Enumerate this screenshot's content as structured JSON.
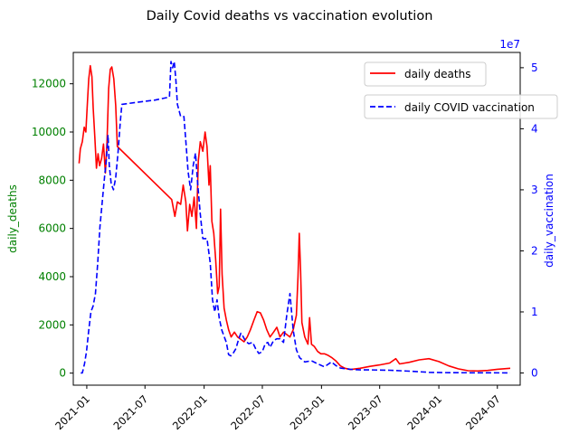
{
  "chart_data": {
    "type": "line",
    "title": "Daily Covid deaths vs vaccination evolution",
    "xlabel": "",
    "xlim": [
      "2020-11-20",
      "2024-09-10"
    ],
    "x_ticks": [
      "2021-01",
      "2021-07",
      "2022-01",
      "2022-07",
      "2023-01",
      "2023-07",
      "2024-01",
      "2024-07"
    ],
    "left_axis": {
      "label": "daily_deaths",
      "color": "#008000",
      "ylim": [
        -500,
        13300
      ],
      "ticks": [
        0,
        2000,
        4000,
        6000,
        8000,
        10000,
        12000
      ]
    },
    "right_axis": {
      "label": "daily_vaccination",
      "color": "#0000ff",
      "ylim": [
        -2000000,
        52500000
      ],
      "ticks": [
        0,
        1,
        2,
        3,
        4,
        5
      ],
      "multiplier": "1e7"
    },
    "grid": false,
    "legend_placement": "top-right",
    "series": [
      {
        "name": "daily deaths",
        "axis": "left",
        "color": "#ff0000",
        "style": "solid",
        "points": [
          [
            "2020-12-08",
            8700
          ],
          [
            "2020-12-12",
            9300
          ],
          [
            "2020-12-18",
            9600
          ],
          [
            "2020-12-24",
            10200
          ],
          [
            "2020-12-29",
            10000
          ],
          [
            "2021-01-03",
            11200
          ],
          [
            "2021-01-07",
            12200
          ],
          [
            "2021-01-12",
            12750
          ],
          [
            "2021-01-17",
            12300
          ],
          [
            "2021-01-21",
            11000
          ],
          [
            "2021-01-26",
            9800
          ],
          [
            "2021-01-31",
            8500
          ],
          [
            "2021-02-05",
            9100
          ],
          [
            "2021-02-10",
            8600
          ],
          [
            "2021-02-16",
            8900
          ],
          [
            "2021-02-22",
            9500
          ],
          [
            "2021-02-28",
            8300
          ],
          [
            "2021-03-05",
            9600
          ],
          [
            "2021-03-10",
            11800
          ],
          [
            "2021-03-15",
            12600
          ],
          [
            "2021-03-20",
            12700
          ],
          [
            "2021-03-26",
            12200
          ],
          [
            "2021-04-01",
            11100
          ],
          [
            "2021-04-06",
            9400
          ],
          [
            "2021-09-22",
            7200
          ],
          [
            "2021-10-02",
            6500
          ],
          [
            "2021-10-10",
            7100
          ],
          [
            "2021-10-20",
            7000
          ],
          [
            "2021-10-28",
            7800
          ],
          [
            "2021-11-05",
            7100
          ],
          [
            "2021-11-10",
            5900
          ],
          [
            "2021-11-17",
            7000
          ],
          [
            "2021-11-24",
            6500
          ],
          [
            "2021-12-01",
            7300
          ],
          [
            "2021-12-08",
            6000
          ],
          [
            "2021-12-14",
            8800
          ],
          [
            "2021-12-20",
            9600
          ],
          [
            "2021-12-28",
            9200
          ],
          [
            "2022-01-04",
            10000
          ],
          [
            "2022-01-10",
            9400
          ],
          [
            "2022-01-16",
            7800
          ],
          [
            "2022-01-20",
            8600
          ],
          [
            "2022-01-25",
            6300
          ],
          [
            "2022-01-31",
            5800
          ],
          [
            "2022-02-06",
            4700
          ],
          [
            "2022-02-12",
            3300
          ],
          [
            "2022-02-17",
            3600
          ],
          [
            "2022-02-21",
            6800
          ],
          [
            "2022-02-26",
            4100
          ],
          [
            "2022-03-04",
            2700
          ],
          [
            "2022-03-11",
            2200
          ],
          [
            "2022-03-18",
            1800
          ],
          [
            "2022-03-26",
            1500
          ],
          [
            "2022-04-05",
            1700
          ],
          [
            "2022-04-15",
            1500
          ],
          [
            "2022-04-25",
            1400
          ],
          [
            "2022-05-05",
            1300
          ],
          [
            "2022-05-15",
            1500
          ],
          [
            "2022-05-25",
            1800
          ],
          [
            "2022-06-05",
            2200
          ],
          [
            "2022-06-15",
            2550
          ],
          [
            "2022-06-25",
            2500
          ],
          [
            "2022-07-05",
            2200
          ],
          [
            "2022-07-15",
            1800
          ],
          [
            "2022-07-25",
            1500
          ],
          [
            "2022-08-05",
            1700
          ],
          [
            "2022-08-15",
            1900
          ],
          [
            "2022-08-25",
            1500
          ],
          [
            "2022-09-05",
            1700
          ],
          [
            "2022-09-15",
            1600
          ],
          [
            "2022-09-25",
            1500
          ],
          [
            "2022-10-05",
            1800
          ],
          [
            "2022-10-15",
            2400
          ],
          [
            "2022-10-20",
            4000
          ],
          [
            "2022-10-24",
            5800
          ],
          [
            "2022-10-28",
            4200
          ],
          [
            "2022-11-01",
            2100
          ],
          [
            "2022-11-10",
            1500
          ],
          [
            "2022-11-20",
            1200
          ],
          [
            "2022-11-25",
            2300
          ],
          [
            "2022-12-01",
            1200
          ],
          [
            "2022-12-10",
            1100
          ],
          [
            "2022-12-20",
            900
          ],
          [
            "2022-12-30",
            800
          ],
          [
            "2023-01-10",
            800
          ],
          [
            "2023-01-20",
            750
          ],
          [
            "2023-02-01",
            650
          ],
          [
            "2023-02-15",
            500
          ],
          [
            "2023-03-01",
            300
          ],
          [
            "2023-03-15",
            200
          ],
          [
            "2023-04-01",
            150
          ],
          [
            "2023-05-01",
            200
          ],
          [
            "2023-06-01",
            280
          ],
          [
            "2023-07-01",
            340
          ],
          [
            "2023-08-01",
            420
          ],
          [
            "2023-08-20",
            600
          ],
          [
            "2023-09-01",
            380
          ],
          [
            "2023-10-01",
            450
          ],
          [
            "2023-11-01",
            550
          ],
          [
            "2023-12-01",
            600
          ],
          [
            "2024-01-01",
            480
          ],
          [
            "2024-02-01",
            300
          ],
          [
            "2024-03-01",
            180
          ],
          [
            "2024-04-01",
            100
          ],
          [
            "2024-05-01",
            90
          ],
          [
            "2024-06-01",
            110
          ],
          [
            "2024-07-01",
            160
          ],
          [
            "2024-08-10",
            200
          ]
        ]
      },
      {
        "name": "daily COVID vaccination",
        "axis": "right",
        "color": "#0000ff",
        "style": "dashed",
        "points": [
          [
            "2020-12-13",
            0
          ],
          [
            "2020-12-18",
            0
          ],
          [
            "2020-12-25",
            1500000
          ],
          [
            "2020-12-31",
            3500000
          ],
          [
            "2021-01-07",
            7000000
          ],
          [
            "2021-01-14",
            10000000
          ],
          [
            "2021-01-21",
            11000000
          ],
          [
            "2021-01-28",
            13000000
          ],
          [
            "2021-02-04",
            18000000
          ],
          [
            "2021-02-11",
            24000000
          ],
          [
            "2021-02-18",
            28000000
          ],
          [
            "2021-02-25",
            32000000
          ],
          [
            "2021-03-03",
            35000000
          ],
          [
            "2021-03-08",
            39000000
          ],
          [
            "2021-03-12",
            34000000
          ],
          [
            "2021-03-18",
            31000000
          ],
          [
            "2021-03-25",
            30000000
          ],
          [
            "2021-04-01",
            32000000
          ],
          [
            "2021-04-08",
            36000000
          ],
          [
            "2021-04-15",
            41000000
          ],
          [
            "2021-04-20",
            44000000
          ],
          [
            "2021-06-01",
            44300000
          ],
          [
            "2021-08-01",
            44700000
          ],
          [
            "2021-09-15",
            45200000
          ],
          [
            "2021-09-20",
            51000000
          ],
          [
            "2021-09-25",
            50000000
          ],
          [
            "2021-09-30",
            51000000
          ],
          [
            "2021-10-05",
            48000000
          ],
          [
            "2021-10-10",
            44000000
          ],
          [
            "2021-10-20",
            42000000
          ],
          [
            "2021-10-30",
            42000000
          ],
          [
            "2021-11-05",
            38000000
          ],
          [
            "2021-11-12",
            33000000
          ],
          [
            "2021-11-20",
            30000000
          ],
          [
            "2021-11-28",
            34000000
          ],
          [
            "2021-12-05",
            36000000
          ],
          [
            "2021-12-12",
            31000000
          ],
          [
            "2021-12-20",
            26000000
          ],
          [
            "2021-12-28",
            22000000
          ],
          [
            "2022-01-10",
            22000000
          ],
          [
            "2022-01-20",
            18000000
          ],
          [
            "2022-01-27",
            12000000
          ],
          [
            "2022-02-03",
            10000000
          ],
          [
            "2022-02-10",
            12000000
          ],
          [
            "2022-02-17",
            9000000
          ],
          [
            "2022-02-25",
            7000000
          ],
          [
            "2022-03-04",
            6000000
          ],
          [
            "2022-03-11",
            5000000
          ],
          [
            "2022-03-18",
            3000000
          ],
          [
            "2022-03-25",
            2800000
          ],
          [
            "2022-04-01",
            3200000
          ],
          [
            "2022-04-10",
            4000000
          ],
          [
            "2022-04-18",
            5500000
          ],
          [
            "2022-04-25",
            6500000
          ],
          [
            "2022-05-02",
            6000000
          ],
          [
            "2022-05-10",
            5200000
          ],
          [
            "2022-05-20",
            4800000
          ],
          [
            "2022-06-01",
            5000000
          ],
          [
            "2022-06-10",
            4000000
          ],
          [
            "2022-06-20",
            3200000
          ],
          [
            "2022-07-01",
            3500000
          ],
          [
            "2022-07-10",
            4800000
          ],
          [
            "2022-07-18",
            5000000
          ],
          [
            "2022-07-25",
            4200000
          ],
          [
            "2022-08-05",
            5300000
          ],
          [
            "2022-08-15",
            5600000
          ],
          [
            "2022-08-25",
            5600000
          ],
          [
            "2022-09-05",
            5000000
          ],
          [
            "2022-09-15",
            9500000
          ],
          [
            "2022-09-25",
            13000000
          ],
          [
            "2022-10-05",
            7000000
          ],
          [
            "2022-10-15",
            3800000
          ],
          [
            "2022-10-25",
            2500000
          ],
          [
            "2022-11-10",
            1800000
          ],
          [
            "2022-12-01",
            2000000
          ],
          [
            "2022-12-20",
            1500000
          ],
          [
            "2023-01-10",
            1000000
          ],
          [
            "2023-02-01",
            1800000
          ],
          [
            "2023-02-15",
            1200000
          ],
          [
            "2023-03-01",
            800000
          ],
          [
            "2023-03-15",
            700000
          ],
          [
            "2023-04-01",
            600000
          ],
          [
            "2023-05-01",
            500000
          ],
          [
            "2023-06-01",
            500000
          ],
          [
            "2023-08-01",
            450000
          ],
          [
            "2023-10-01",
            300000
          ],
          [
            "2023-12-01",
            100000
          ],
          [
            "2024-02-01",
            50000
          ],
          [
            "2024-05-01",
            30000
          ],
          [
            "2024-08-10",
            20000
          ]
        ]
      }
    ]
  }
}
